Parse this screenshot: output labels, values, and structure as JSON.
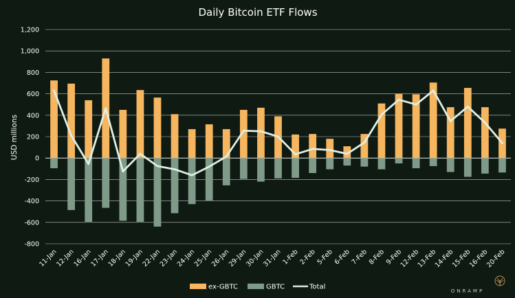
{
  "chart_data": {
    "type": "bar",
    "title": "Daily Bitcoin ETF Flows",
    "ylabel": "USD millions",
    "xlabel": "",
    "ylim": [
      -800,
      1200
    ],
    "yticks": [
      -800,
      -600,
      -400,
      -200,
      0,
      200,
      400,
      600,
      800,
      1000,
      1200
    ],
    "ytick_labels": [
      "-800",
      "-600",
      "-400",
      "-200",
      "0",
      "200",
      "400",
      "600",
      "800",
      "1,000",
      "1,200"
    ],
    "grid": true,
    "legend_position": "bottom",
    "categories": [
      "11-Jan",
      "12-Jan",
      "16-Jan",
      "17-Jan",
      "18-Jan",
      "19-Jan",
      "22-Jan",
      "23-Jan",
      "24-Jan",
      "25-Jan",
      "26-Jan",
      "29-Jan",
      "30-Jan",
      "31-Jan",
      "1-Feb",
      "2-Feb",
      "5-Feb",
      "6-Feb",
      "7-Feb",
      "8-Feb",
      "9-Feb",
      "12-Feb",
      "13-Feb",
      "14-Feb",
      "15-Feb",
      "16-Feb",
      "20-Feb"
    ],
    "series": [
      {
        "name": "ex-GBTC",
        "kind": "bar",
        "color": "#f6b55f",
        "values": [
          725,
          695,
          540,
          930,
          450,
          635,
          565,
          410,
          270,
          315,
          270,
          450,
          470,
          390,
          220,
          225,
          180,
          110,
          225,
          510,
          600,
          595,
          705,
          475,
          655,
          475,
          275
        ]
      },
      {
        "name": "GBTC",
        "kind": "bar",
        "color": "#7f9a88",
        "values": [
          -95,
          -485,
          -595,
          -465,
          -585,
          -595,
          -640,
          -515,
          -430,
          -395,
          -255,
          -195,
          -220,
          -190,
          -185,
          -140,
          -105,
          -70,
          -80,
          -105,
          -50,
          -95,
          -75,
          -130,
          -175,
          -145,
          -135
        ]
      },
      {
        "name": "Total",
        "kind": "line",
        "color": "#dff0e6",
        "values": [
          630,
          210,
          -55,
          465,
          -125,
          40,
          -75,
          -105,
          -160,
          -80,
          15,
          255,
          250,
          200,
          35,
          85,
          75,
          40,
          145,
          405,
          545,
          500,
          630,
          345,
          480,
          330,
          140
        ]
      }
    ]
  },
  "legend": {
    "items": [
      {
        "label": "ex-GBTC",
        "color": "#f6b55f",
        "shape": "bar"
      },
      {
        "label": "GBTC",
        "color": "#7f9a88",
        "shape": "bar"
      },
      {
        "label": "Total",
        "color": "#dff0e6",
        "shape": "line"
      }
    ]
  },
  "branding": {
    "text": "ONRAMP",
    "icon": "tree-icon"
  }
}
